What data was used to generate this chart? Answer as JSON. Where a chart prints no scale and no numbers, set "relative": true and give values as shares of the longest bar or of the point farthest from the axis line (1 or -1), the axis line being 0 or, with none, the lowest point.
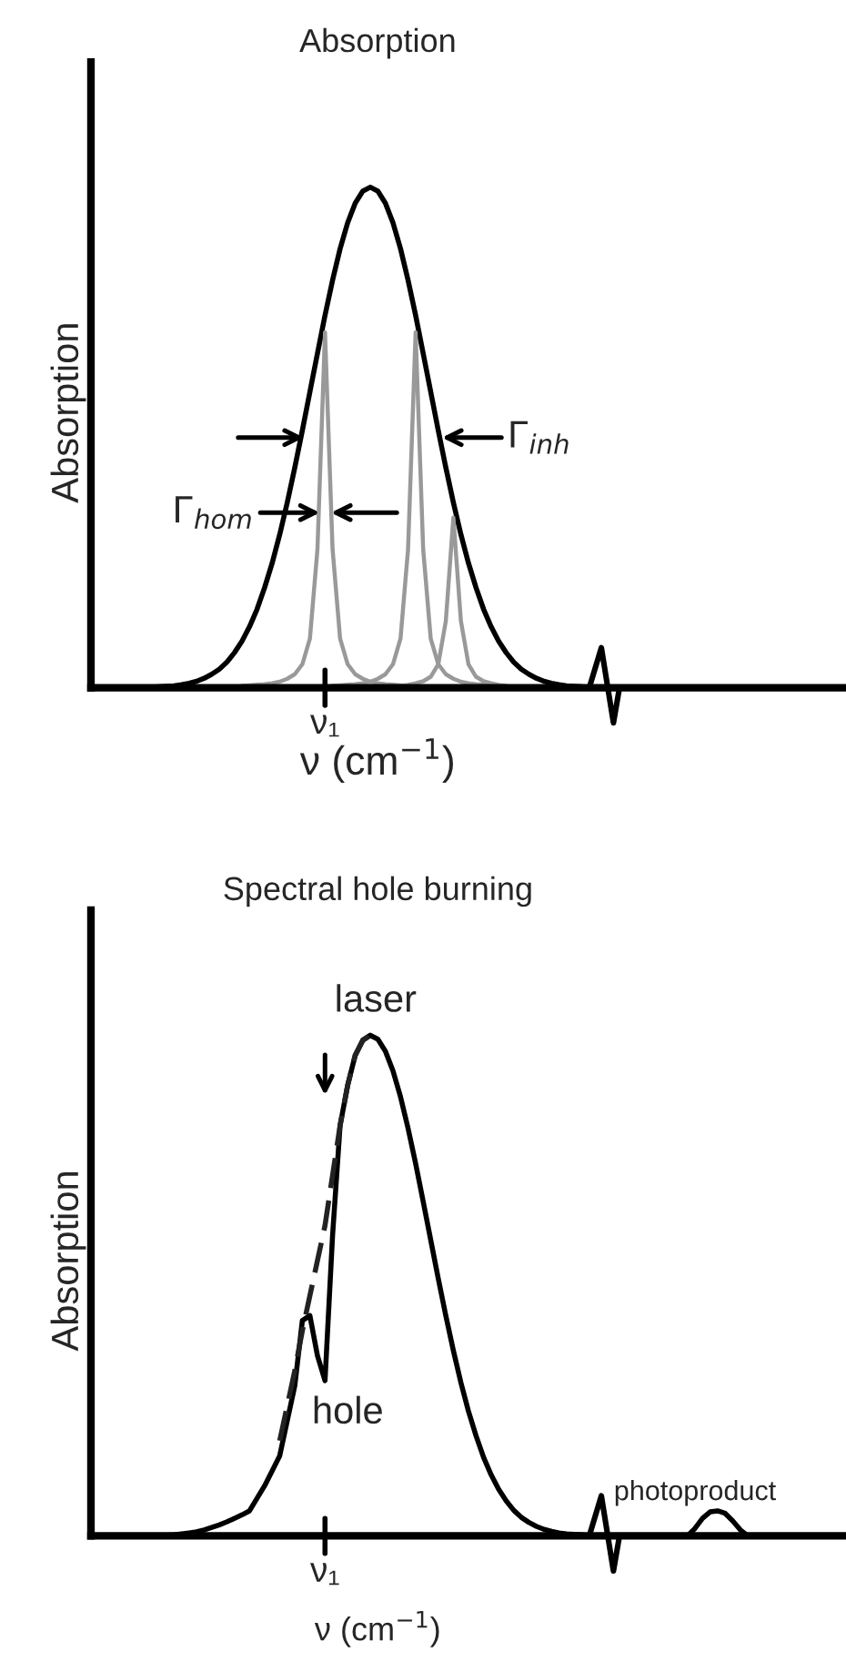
{
  "chart_data": [
    {
      "type": "line",
      "relative": true,
      "title": "Absorption",
      "xlabel": "ν (cm$^{−1}$)",
      "ylabel": "Absorption",
      "categories": [
        null,
        null,
        null,
        null,
        null,
        null,
        null,
        null,
        null,
        null,
        null,
        null,
        null,
        null,
        null,
        null,
        null,
        null,
        null,
        null,
        null,
        null,
        null,
        null,
        null,
        null,
        null,
        null,
        null,
        null,
        null,
        null,
        null,
        null,
        null,
        null,
        null,
        null,
        null,
        null,
        null,
        null,
        null,
        null,
        null,
        null,
        null,
        null,
        null,
        null,
        null,
        null,
        null,
        null,
        null,
        null,
        null,
        null,
        null,
        null,
        null,
        null,
        null,
        null,
        null,
        null,
        null,
        null,
        null,
        null,
        null,
        null,
        null,
        null,
        null,
        null,
        null,
        null,
        null,
        null,
        null,
        null,
        null,
        null,
        null,
        null,
        null,
        null,
        null,
        null,
        null,
        null,
        null,
        null,
        null,
        null,
        null,
        null,
        null,
        null,
        null
      ],
      "series": [
        {
          "color": "#000000",
          "values": [
            0,
            0,
            0,
            0,
            0,
            0,
            0,
            0,
            0.001,
            0.002,
            0.003,
            0.004,
            0.006,
            0.009,
            0.013,
            0.019,
            0.027,
            0.037,
            0.051,
            0.07,
            0.093,
            0.122,
            0.157,
            0.2,
            0.249,
            0.306,
            0.37,
            0.44,
            0.514,
            0.591,
            0.668,
            0.744,
            0.814,
            0.877,
            0.929,
            0.968,
            0.992,
            1,
            0.992,
            0.968,
            0.929,
            0.877,
            0.814,
            0.744,
            0.668,
            0.591,
            0.514,
            0.44,
            0.37,
            0.306,
            0.249,
            0.2,
            0.157,
            0.122,
            0.093,
            0.07,
            0.051,
            0.037,
            0.027,
            0.019,
            0.013,
            0.009,
            0.006,
            0.004,
            0.003,
            0.002,
            0,
            null,
            null,
            null,
            0,
            0,
            0,
            0,
            0,
            0,
            0,
            0,
            0,
            0,
            0,
            0,
            0,
            0,
            0,
            0,
            0,
            0,
            0,
            0,
            0,
            0,
            0,
            0,
            0,
            0,
            0,
            0,
            0,
            0,
            0
          ]
        },
        {
          "color": "#999999",
          "values": [
            null,
            null,
            null,
            null,
            null,
            null,
            null,
            null,
            null,
            null,
            null,
            null,
            null,
            null,
            null,
            null,
            null,
            null,
            null,
            null,
            0.004,
            0.005,
            0.006,
            0.007,
            0.009,
            0.012,
            0.018,
            0.027,
            0.047,
            0.098,
            0.277,
            0.71,
            0.277,
            0.098,
            0.047,
            0.027,
            0.018,
            0.012,
            0.009,
            0.007,
            0.006,
            0.005,
            0.004,
            null,
            null,
            null,
            null,
            null,
            null,
            null,
            null,
            null,
            null,
            null,
            null,
            null,
            null,
            null,
            null,
            null,
            null,
            null,
            null,
            null,
            null,
            null,
            null,
            null,
            null,
            null,
            null,
            null,
            null,
            null,
            null,
            null,
            null,
            null,
            null,
            null,
            null,
            null,
            null,
            null,
            null,
            null,
            null,
            null,
            null,
            null,
            null,
            null,
            null,
            null,
            null,
            null,
            null,
            null,
            null,
            null,
            null
          ]
        },
        {
          "color": "#999999",
          "values": [
            null,
            null,
            null,
            null,
            null,
            null,
            null,
            null,
            null,
            null,
            null,
            null,
            null,
            null,
            null,
            null,
            null,
            null,
            null,
            null,
            null,
            null,
            null,
            null,
            null,
            null,
            null,
            null,
            null,
            null,
            null,
            null,
            0.004,
            0.005,
            0.006,
            0.007,
            0.009,
            0.012,
            0.018,
            0.027,
            0.047,
            0.098,
            0.277,
            0.71,
            0.277,
            0.098,
            0.047,
            0.027,
            0.018,
            0.012,
            0.009,
            0.007,
            0.006,
            0.005,
            0.004,
            null,
            null,
            null,
            null,
            null,
            null,
            null,
            null,
            null,
            null,
            null,
            null,
            null,
            null,
            null,
            null,
            null,
            null,
            null,
            null,
            null,
            null,
            null,
            null,
            null,
            null,
            null,
            null,
            null,
            null,
            null,
            null,
            null,
            null,
            null,
            null,
            null,
            null,
            null,
            null,
            null,
            null,
            null,
            null,
            null,
            null
          ]
        },
        {
          "color": "#999999",
          "values": [
            null,
            null,
            null,
            null,
            null,
            null,
            null,
            null,
            null,
            null,
            null,
            null,
            null,
            null,
            null,
            null,
            null,
            null,
            null,
            null,
            null,
            null,
            null,
            null,
            null,
            null,
            null,
            null,
            null,
            null,
            null,
            null,
            null,
            null,
            null,
            null,
            null,
            null,
            null,
            null,
            null,
            0.004,
            0.006,
            0.009,
            0.013,
            0.022,
            0.047,
            0.133,
            0.34,
            0.133,
            0.047,
            0.022,
            0.013,
            0.009,
            0.006,
            0.004,
            null,
            null,
            null,
            null,
            null,
            null,
            null,
            null,
            null,
            null,
            null,
            null,
            null,
            null,
            null,
            null,
            null,
            null,
            null,
            null,
            null,
            null,
            null,
            null,
            null,
            null,
            null,
            null,
            null,
            null,
            null,
            null,
            null,
            null,
            null,
            null,
            null,
            null,
            null,
            null,
            null,
            null,
            null,
            null,
            null
          ]
        }
      ],
      "annotations": [
        "Γ$_{inh}$",
        "Γ$_{hom}$",
        "ν₁"
      ]
    },
    {
      "type": "line",
      "relative": true,
      "title": "Spectral hole burning",
      "xlabel": "ν (cm$^{−1}$)",
      "ylabel": "Absorption",
      "categories": [
        null,
        null,
        null,
        null,
        null,
        null,
        null,
        null,
        null,
        null,
        null,
        null,
        null,
        null,
        null,
        null,
        null,
        null,
        null,
        null,
        null,
        null,
        null,
        null,
        null,
        null,
        null,
        null,
        null,
        null,
        null,
        null,
        null,
        null,
        null,
        null,
        null,
        null,
        null,
        null,
        null,
        null,
        null,
        null,
        null,
        null,
        null,
        null,
        null,
        null,
        null,
        null,
        null,
        null,
        null,
        null,
        null,
        null,
        null,
        null,
        null,
        null,
        null,
        null,
        null,
        null,
        null,
        null,
        null,
        null,
        null,
        null,
        null,
        null,
        null,
        null,
        null,
        null,
        null,
        null,
        null,
        null,
        null,
        null,
        null,
        null,
        null,
        null,
        null,
        null,
        null,
        null,
        null,
        null,
        null,
        null,
        null,
        null,
        null,
        null,
        null
      ],
      "series": [
        {
          "color": "#000000",
          "values": [
            0,
            0,
            0,
            0,
            0,
            0,
            0,
            0,
            0,
            0,
            0.001,
            0.002,
            0.004,
            0.006,
            0.008,
            0.012,
            0.017,
            0.022,
            0.028,
            0.035,
            0.042,
            0.05,
            0.075,
            0.1,
            0.13,
            0.16,
            0.23,
            0.3,
            0.43,
            0.44,
            0.36,
            0.31,
            0.6,
            0.82,
            0.9,
            0.96,
            0.99,
            1,
            0.992,
            0.968,
            0.929,
            0.877,
            0.814,
            0.744,
            0.668,
            0.591,
            0.514,
            0.44,
            0.37,
            0.306,
            0.249,
            0.2,
            0.157,
            0.122,
            0.093,
            0.07,
            0.051,
            0.037,
            0.027,
            0.019,
            0.013,
            0.009,
            0.006,
            0.004,
            0.003,
            0.002,
            0,
            null,
            null,
            null,
            0,
            0,
            0,
            0,
            0,
            0,
            0,
            0,
            0,
            0,
            0.015,
            0.035,
            0.048,
            0.05,
            0.045,
            0.03,
            0.012,
            0,
            0,
            0,
            0,
            0,
            0,
            0,
            0,
            0,
            0,
            0,
            0,
            0,
            0
          ]
        },
        {
          "color": "#222222",
          "line_style": "dashed",
          "values": [
            null,
            null,
            null,
            null,
            null,
            null,
            null,
            null,
            null,
            null,
            null,
            null,
            null,
            null,
            null,
            null,
            null,
            null,
            null,
            null,
            null,
            null,
            null,
            null,
            null,
            0.19,
            0.26,
            0.33,
            0.41,
            0.48,
            0.55,
            0.62,
            0.72,
            0.82,
            0.9,
            0.96,
            0.99,
            1,
            null,
            null,
            null,
            null,
            null,
            null,
            null,
            null,
            null,
            null,
            null,
            null,
            null,
            null,
            null,
            null,
            null,
            null,
            null,
            null,
            null,
            null,
            null,
            null,
            null,
            null,
            null,
            null,
            null,
            null,
            null,
            null,
            null,
            null,
            null,
            null,
            null,
            null,
            null,
            null,
            null,
            null,
            null,
            null,
            null,
            null,
            null,
            null,
            null,
            null,
            null,
            null,
            null,
            null,
            null,
            null,
            null,
            null,
            null,
            null,
            null,
            null,
            null
          ]
        }
      ],
      "annotations": [
        "laser",
        "hole",
        "photoproduct",
        "ν₁"
      ]
    }
  ]
}
